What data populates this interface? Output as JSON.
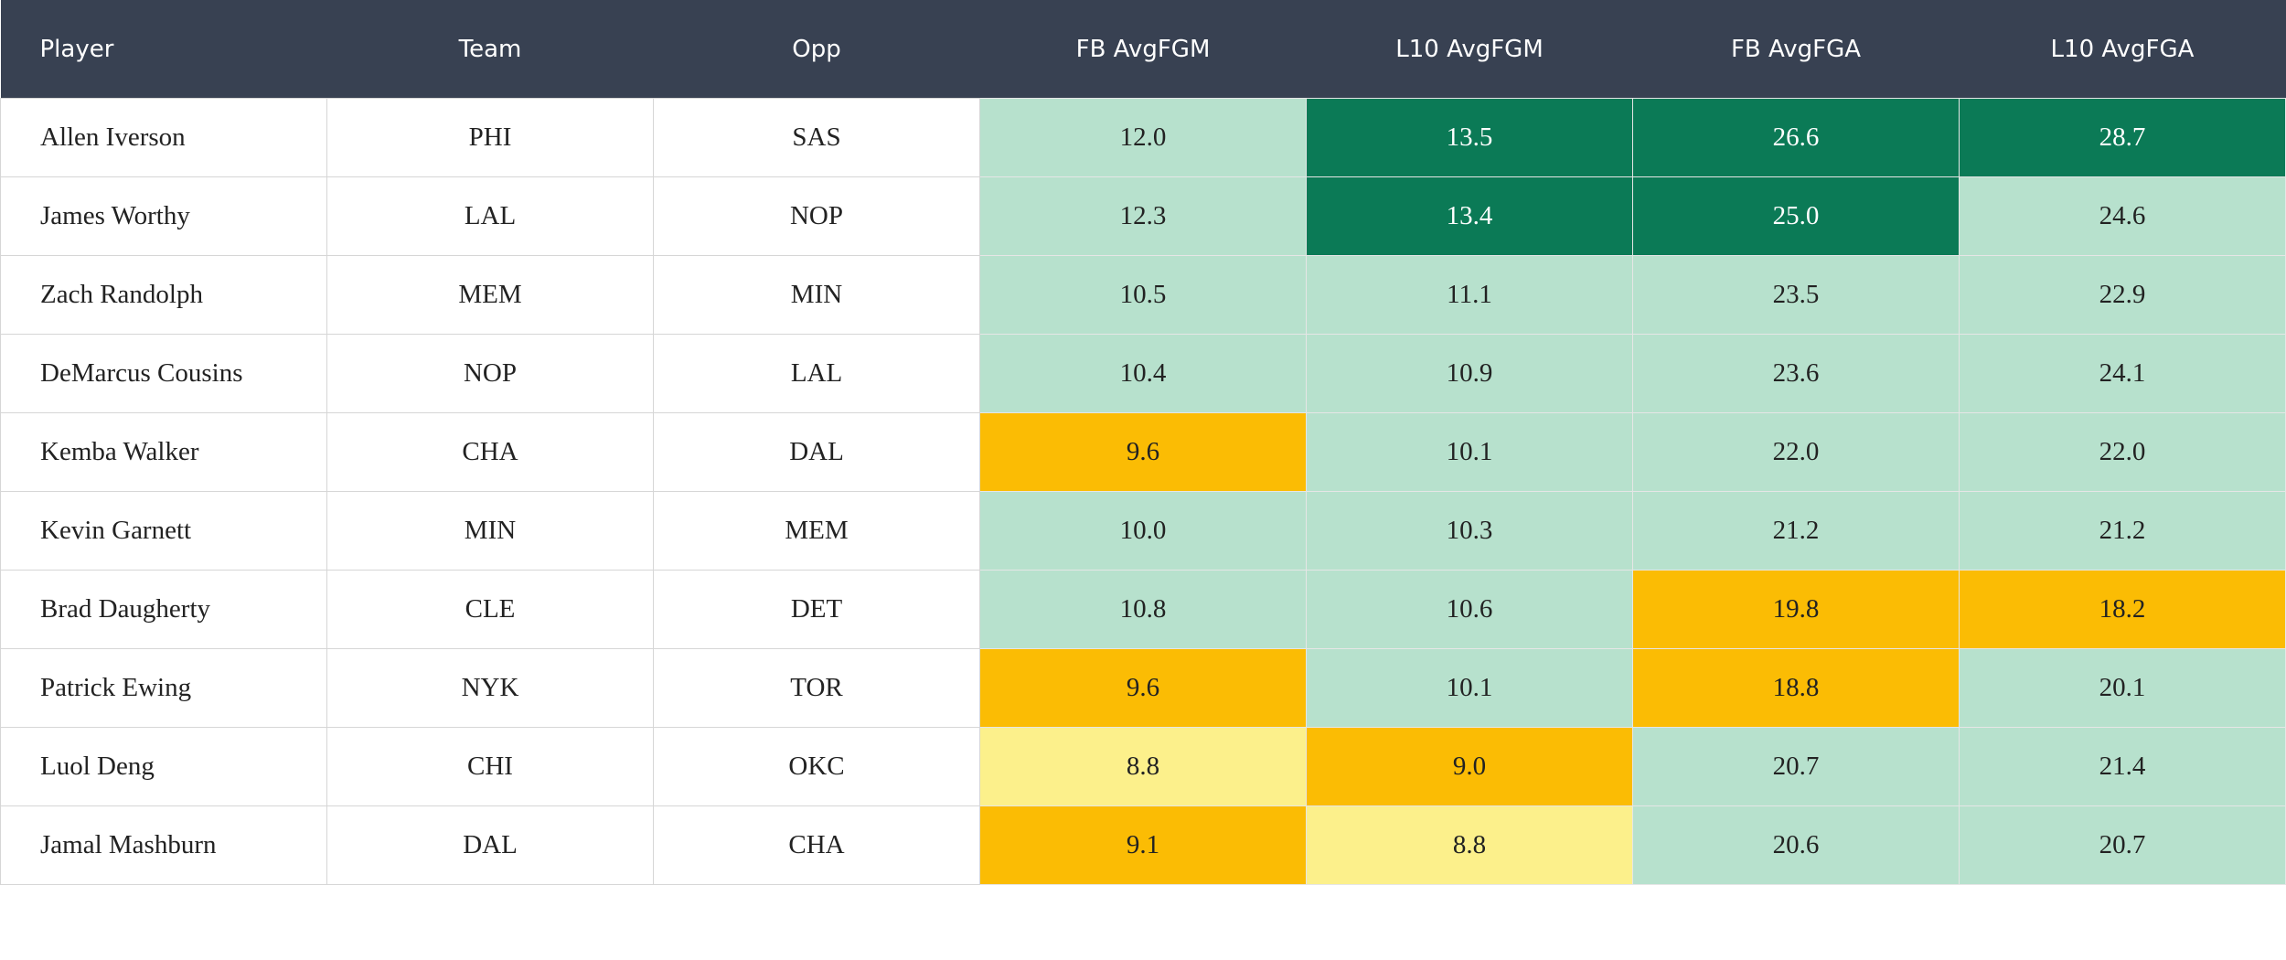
{
  "table": {
    "header": [
      "Player",
      "Team",
      "Opp",
      "FB AvgFGM",
      "L10 AvgFGM",
      "FB AvgFGA",
      "L10 AvgFGA"
    ],
    "rows": [
      [
        "Allen Iverson",
        "PHI",
        "SAS",
        "12.0",
        "13.5",
        "26.6",
        "28.7"
      ],
      [
        "James Worthy",
        "LAL",
        "NOP",
        "12.3",
        "13.4",
        "25.0",
        "24.6"
      ],
      [
        "Zach Randolph",
        "MEM",
        "MIN",
        "10.5",
        "11.1",
        "23.5",
        "22.9"
      ],
      [
        "DeMarcus Cousins",
        "NOP",
        "LAL",
        "10.4",
        "10.9",
        "23.6",
        "24.1"
      ],
      [
        "Kemba Walker",
        "CHA",
        "DAL",
        "9.6",
        "10.1",
        "22.0",
        "22.0"
      ],
      [
        "Kevin Garnett",
        "MIN",
        "MEM",
        "10.0",
        "10.3",
        "21.2",
        "21.2"
      ],
      [
        "Brad Daugherty",
        "CLE",
        "DET",
        "10.8",
        "10.6",
        "19.8",
        "18.2"
      ],
      [
        "Patrick Ewing",
        "NYK",
        "TOR",
        "9.6",
        "10.1",
        "18.8",
        "20.1"
      ],
      [
        "Luol Deng",
        "CHI",
        "OKC",
        "8.8",
        "9.0",
        "20.7",
        "21.4"
      ],
      [
        "Jamal Mashburn",
        "DAL",
        "CHA",
        "9.1",
        "8.8",
        "20.6",
        "20.7"
      ]
    ],
    "cell_colors": [
      [
        "#b7e1cd",
        "#0b7a56",
        "#0b7a56",
        "#0b7a56"
      ],
      [
        "#b7e1cd",
        "#0b7a56",
        "#0b7a56",
        "#b7e1cd"
      ],
      [
        "#b7e1cd",
        "#b7e1cd",
        "#b7e1cd",
        "#b7e1cd"
      ],
      [
        "#b7e1cd",
        "#b7e1cd",
        "#b7e1cd",
        "#b7e1cd"
      ],
      [
        "#fbbc04",
        "#b7e1cd",
        "#b7e1cd",
        "#b7e1cd"
      ],
      [
        "#b7e1cd",
        "#b7e1cd",
        "#b7e1cd",
        "#b7e1cd"
      ],
      [
        "#b7e1cd",
        "#b7e1cd",
        "#fbbc04",
        "#fbbc04"
      ],
      [
        "#fbbc04",
        "#b7e1cd",
        "#fbbc04",
        "#b7e1cd"
      ],
      [
        "#fcf08b",
        "#fbbc04",
        "#b7e1cd",
        "#b7e1cd"
      ],
      [
        "#fbbc04",
        "#fcf08b",
        "#b7e1cd",
        "#b7e1cd"
      ]
    ]
  }
}
